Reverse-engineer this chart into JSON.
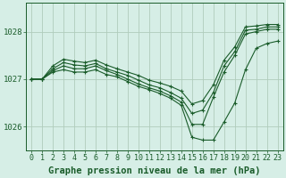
{
  "title": "Graphe pression niveau de la mer (hPa)",
  "bg_color": "#d6eee6",
  "grid_color": "#b0ccbc",
  "line_color": "#1a5c2a",
  "x_hours": [
    0,
    1,
    2,
    3,
    4,
    5,
    6,
    7,
    8,
    9,
    10,
    11,
    12,
    13,
    14,
    15,
    16,
    17,
    18,
    19,
    20,
    21,
    22,
    23
  ],
  "series": [
    [
      1027.0,
      1027.0,
      1027.15,
      1027.2,
      1027.15,
      1027.15,
      1027.2,
      1027.1,
      1027.05,
      1026.95,
      1026.85,
      1026.78,
      1026.7,
      1026.6,
      1026.45,
      1025.78,
      1025.72,
      1025.72,
      1026.1,
      1026.5,
      1027.2,
      1027.65,
      1027.75,
      1027.8
    ],
    [
      1027.0,
      1027.0,
      1027.18,
      1027.28,
      1027.22,
      1027.22,
      1027.28,
      1027.18,
      1027.1,
      1027.0,
      1026.9,
      1026.82,
      1026.75,
      1026.65,
      1026.52,
      1026.05,
      1026.05,
      1026.62,
      1027.15,
      1027.5,
      1027.95,
      1028.0,
      1028.05,
      1028.05
    ],
    [
      1027.0,
      1027.0,
      1027.22,
      1027.35,
      1027.3,
      1027.28,
      1027.33,
      1027.22,
      1027.15,
      1027.08,
      1026.98,
      1026.88,
      1026.82,
      1026.72,
      1026.6,
      1026.28,
      1026.35,
      1026.72,
      1027.28,
      1027.58,
      1028.03,
      1028.05,
      1028.1,
      1028.1
    ],
    [
      1027.0,
      1027.0,
      1027.28,
      1027.42,
      1027.38,
      1027.35,
      1027.4,
      1027.3,
      1027.22,
      1027.15,
      1027.08,
      1026.98,
      1026.92,
      1026.85,
      1026.75,
      1026.48,
      1026.55,
      1026.88,
      1027.4,
      1027.68,
      1028.1,
      1028.12,
      1028.15,
      1028.15
    ]
  ],
  "ylim": [
    1025.5,
    1028.6
  ],
  "yticks": [
    1026,
    1027,
    1028
  ],
  "font_color": "#1a5c2a",
  "title_fontsize": 7.5,
  "tick_fontsize": 6.0
}
